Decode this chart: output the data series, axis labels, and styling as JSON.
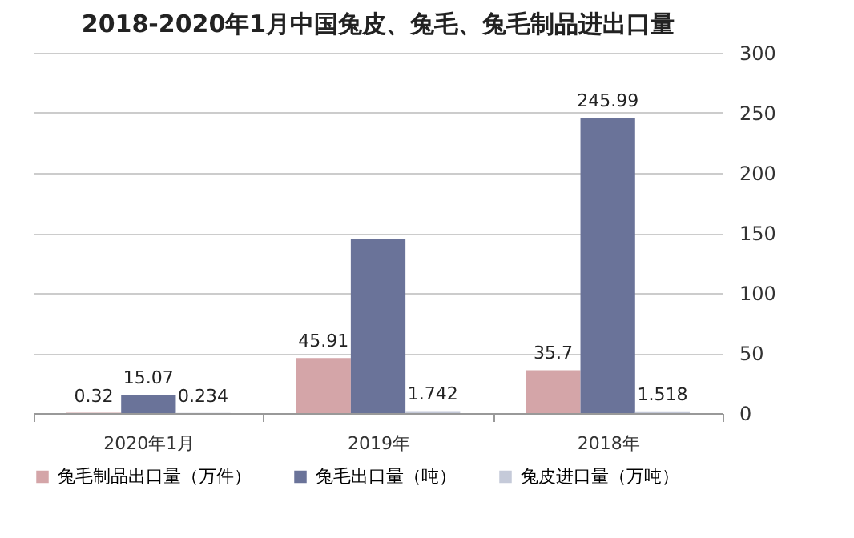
{
  "chart_data": {
    "type": "bar",
    "title": "2018-2020年1月中国兔皮、兔毛、兔毛制品进出口量",
    "categories": [
      "2020年1月",
      "2019年",
      "2018年"
    ],
    "series": [
      {
        "name": "兔毛制品出口量（万件）",
        "color": "#d4a5a8",
        "values": [
          0.32,
          45.91,
          35.7
        ],
        "value_labels": [
          "0.32",
          "45.91",
          "35.7"
        ]
      },
      {
        "name": "兔毛出口量（吨）",
        "color": "#6a7399",
        "values": [
          15.07,
          145,
          245.99
        ],
        "value_labels": [
          "15.07",
          null,
          "245.99"
        ]
      },
      {
        "name": "兔皮进口量（万吨）",
        "color": "#c5cad9",
        "values": [
          0.234,
          1.742,
          1.518
        ],
        "value_labels": [
          "0.234",
          "1.742",
          "1.518"
        ]
      }
    ],
    "ylim": [
      0,
      300
    ],
    "yticks": [
      0,
      50,
      100,
      150,
      200,
      250,
      300
    ],
    "grid": "y",
    "legend": "bottom"
  }
}
